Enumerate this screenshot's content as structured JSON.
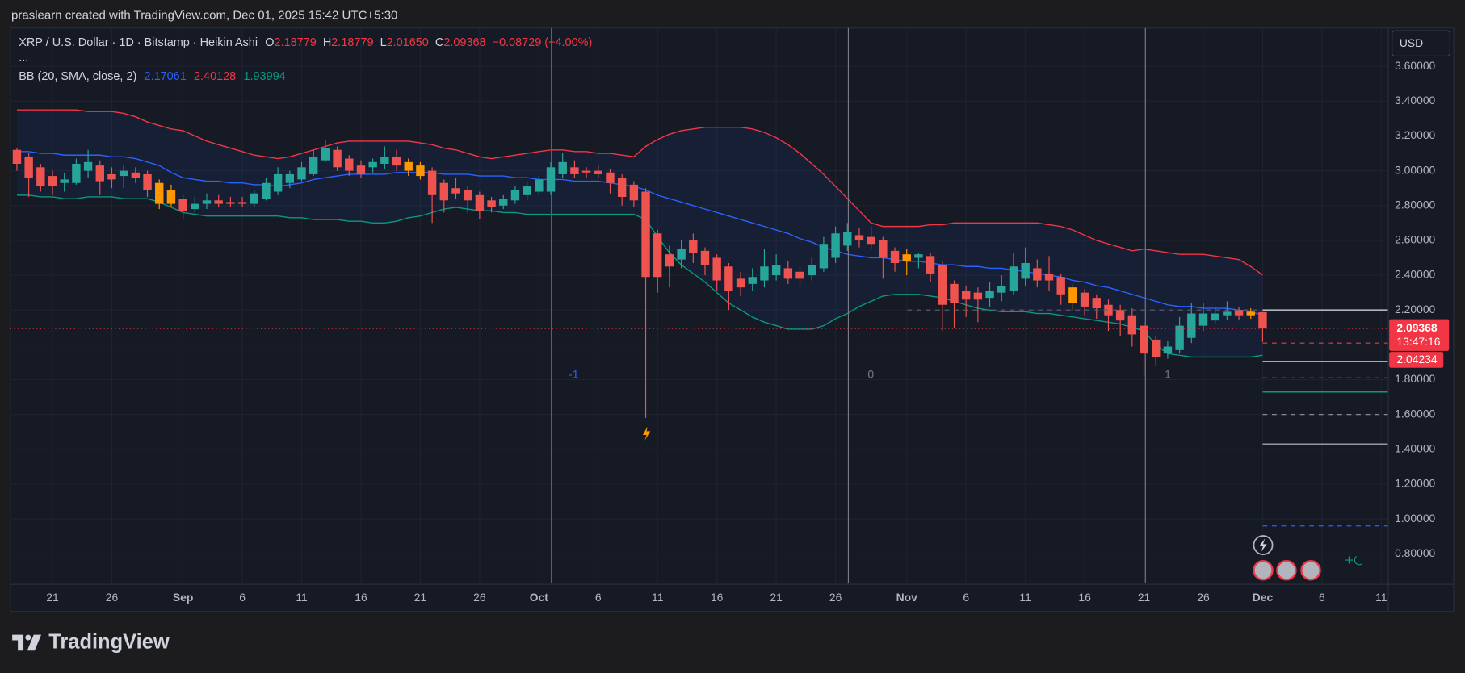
{
  "header": {
    "attribution": "praslearn created with TradingView.com, Dec 01, 2025 15:42 UTC+5:30"
  },
  "chart_data": {
    "type": "candlestick",
    "title": "XRP / U.S. Dollar · 1D · Bitstamp · Heikin Ashi",
    "ohlc_legend": [
      {
        "label": "O",
        "value": "2.18779"
      },
      {
        "label": "H",
        "value": "2.18779"
      },
      {
        "label": "L",
        "value": "2.01650"
      },
      {
        "label": "C",
        "value": "2.09368"
      }
    ],
    "change": "−0.08729 (−4.00%)",
    "more": "...",
    "currency": "USD",
    "categories": [
      null,
      null,
      null,
      "21",
      null,
      null,
      null,
      null,
      "26",
      null,
      null,
      null,
      null,
      null,
      "Sep",
      null,
      null,
      null,
      null,
      "6",
      null,
      null,
      null,
      null,
      "11",
      null,
      null,
      null,
      null,
      "16",
      null,
      null,
      null,
      null,
      "21",
      null,
      null,
      null,
      null,
      "26",
      null,
      null,
      null,
      null,
      "Oct",
      null,
      null,
      null,
      null,
      "6",
      null,
      null,
      null,
      null,
      "11",
      null,
      null,
      null,
      null,
      "16",
      null,
      null,
      null,
      null,
      "21",
      null,
      null,
      null,
      null,
      "26",
      null,
      null,
      null,
      null,
      null,
      "Nov",
      null,
      null,
      null,
      null,
      "6",
      null,
      null,
      null,
      null,
      "11",
      null,
      null,
      null,
      null,
      "16",
      null,
      null,
      null,
      null,
      "21",
      null,
      null,
      null,
      null,
      "26",
      null,
      null,
      null,
      null,
      "Dec",
      null,
      null,
      null,
      null,
      "6",
      null,
      null,
      null,
      null,
      "11"
    ],
    "open": [
      3.12,
      3.08,
      3.02,
      2.97,
      2.93,
      2.93,
      3.0,
      3.03,
      2.98,
      2.97,
      2.99,
      2.98,
      2.93,
      2.89,
      2.84,
      2.78,
      2.81,
      2.83,
      2.82,
      2.82,
      2.81,
      2.84,
      2.88,
      2.93,
      2.95,
      2.98,
      3.06,
      3.12,
      3.07,
      3.03,
      3.02,
      3.04,
      3.08,
      3.05,
      3.03,
      3.0,
      2.93,
      2.9,
      2.89,
      2.86,
      2.83,
      2.8,
      2.83,
      2.86,
      2.88,
      2.88,
      2.98,
      3.02,
      3.0,
      3.0,
      2.99,
      2.96,
      2.92,
      2.88,
      2.64,
      2.52,
      2.49,
      2.6,
      2.54,
      2.5,
      2.45,
      2.38,
      2.35,
      2.37,
      2.4,
      2.44,
      2.42,
      2.4,
      2.44,
      2.5,
      2.57,
      2.63,
      2.62,
      2.6,
      2.54,
      2.52,
      2.5,
      2.51,
      2.46,
      2.35,
      2.31,
      2.3,
      2.27,
      2.3,
      2.31,
      2.38,
      2.44,
      2.41,
      2.39,
      2.33,
      2.3,
      2.27,
      2.23,
      2.2,
      2.17,
      2.11,
      2.03,
      1.95,
      1.97,
      2.04,
      2.11,
      2.14,
      2.17,
      2.2,
      2.19,
      2.18779,
      null,
      null,
      null,
      null,
      null,
      null,
      null,
      null,
      null,
      null
    ],
    "high": [
      3.13,
      3.1,
      3.04,
      3.0,
      2.99,
      3.07,
      3.12,
      3.06,
      3.02,
      3.03,
      3.02,
      3.0,
      2.95,
      2.92,
      2.86,
      2.85,
      2.87,
      2.86,
      2.85,
      2.85,
      2.89,
      2.96,
      3.02,
      3.0,
      3.05,
      3.12,
      3.18,
      3.14,
      3.09,
      3.06,
      3.07,
      3.14,
      3.12,
      3.07,
      3.05,
      3.02,
      2.95,
      2.96,
      2.91,
      2.88,
      2.85,
      2.86,
      2.91,
      2.94,
      2.97,
      3.05,
      3.1,
      3.06,
      3.02,
      3.03,
      3.01,
      2.98,
      2.94,
      2.9,
      2.66,
      2.57,
      2.6,
      2.64,
      2.56,
      2.52,
      2.47,
      2.42,
      2.44,
      2.55,
      2.52,
      2.48,
      2.45,
      2.5,
      2.62,
      2.68,
      2.7,
      2.67,
      2.68,
      2.62,
      2.56,
      2.55,
      2.53,
      2.53,
      2.48,
      2.37,
      2.34,
      2.33,
      2.36,
      2.4,
      2.53,
      2.56,
      2.49,
      2.51,
      2.41,
      2.35,
      2.32,
      2.29,
      2.26,
      2.23,
      2.21,
      2.13,
      2.05,
      2.02,
      2.16,
      2.24,
      2.24,
      2.22,
      2.25,
      2.22,
      2.21,
      2.18779,
      null,
      null,
      null,
      null,
      null,
      null,
      null,
      null,
      null,
      null
    ],
    "low": [
      3.0,
      2.85,
      2.88,
      2.86,
      2.88,
      2.92,
      2.96,
      2.86,
      2.9,
      2.9,
      2.93,
      2.85,
      2.78,
      2.79,
      2.72,
      2.76,
      2.78,
      2.79,
      2.79,
      2.79,
      2.79,
      2.83,
      2.86,
      2.9,
      2.94,
      2.97,
      3.05,
      3.0,
      2.97,
      2.96,
      2.99,
      3.01,
      3.0,
      2.97,
      2.95,
      2.7,
      2.76,
      2.84,
      2.76,
      2.72,
      2.76,
      2.78,
      2.81,
      2.83,
      2.86,
      2.86,
      2.96,
      2.96,
      2.96,
      2.96,
      2.87,
      2.8,
      2.79,
      1.58,
      2.3,
      2.33,
      2.44,
      2.47,
      2.4,
      2.31,
      2.2,
      2.28,
      2.31,
      2.33,
      2.37,
      2.35,
      2.34,
      2.37,
      2.42,
      2.47,
      2.54,
      2.56,
      2.55,
      2.38,
      2.42,
      2.4,
      2.44,
      2.36,
      2.08,
      2.1,
      2.16,
      2.13,
      2.22,
      2.25,
      2.29,
      2.34,
      2.33,
      2.31,
      2.23,
      2.2,
      2.17,
      2.15,
      2.08,
      2.05,
      1.99,
      1.82,
      1.88,
      1.92,
      1.95,
      2.01,
      2.08,
      2.12,
      2.14,
      2.14,
      2.15,
      2.0165,
      null,
      null,
      null,
      null,
      null,
      null,
      null,
      null,
      null,
      null
    ],
    "close": [
      3.04,
      2.96,
      2.91,
      2.91,
      2.95,
      3.04,
      3.05,
      2.94,
      2.95,
      3.0,
      2.96,
      2.89,
      2.81,
      2.81,
      2.77,
      2.81,
      2.83,
      2.81,
      2.81,
      2.81,
      2.87,
      2.93,
      2.98,
      2.98,
      3.02,
      3.08,
      3.13,
      3.02,
      3.0,
      2.98,
      3.05,
      3.08,
      3.03,
      3.0,
      2.97,
      2.86,
      2.83,
      2.87,
      2.83,
      2.77,
      2.79,
      2.84,
      2.89,
      2.91,
      2.95,
      3.02,
      3.05,
      2.98,
      2.99,
      2.98,
      2.93,
      2.85,
      2.83,
      2.39,
      2.39,
      2.45,
      2.55,
      2.53,
      2.46,
      2.37,
      2.31,
      2.33,
      2.39,
      2.45,
      2.46,
      2.38,
      2.38,
      2.46,
      2.58,
      2.64,
      2.65,
      2.6,
      2.58,
      2.5,
      2.47,
      2.48,
      2.52,
      2.41,
      2.23,
      2.24,
      2.26,
      2.26,
      2.31,
      2.34,
      2.45,
      2.47,
      2.37,
      2.37,
      2.29,
      2.24,
      2.22,
      2.21,
      2.17,
      2.14,
      2.06,
      1.95,
      1.93,
      1.99,
      2.11,
      2.18,
      2.18,
      2.18,
      2.19,
      2.17,
      2.17,
      2.09368,
      null,
      null,
      null,
      null,
      null,
      null,
      null,
      null,
      null,
      null
    ],
    "candle_colors": [
      "#ef5350",
      "#ef5350",
      "#ef5350",
      "#ef5350",
      "#26a69a",
      "#26a69a",
      "#26a69a",
      "#ef5350",
      "#ef5350",
      "#26a69a",
      "#ef5350",
      "#ef5350",
      "#ff9800",
      "#ff9800",
      "#ef5350",
      "#26a69a",
      "#26a69a",
      "#ef5350",
      "#ef5350",
      "#ef5350",
      "#26a69a",
      "#26a69a",
      "#26a69a",
      "#26a69a",
      "#26a69a",
      "#26a69a",
      "#26a69a",
      "#ef5350",
      "#ef5350",
      "#ef5350",
      "#26a69a",
      "#26a69a",
      "#ef5350",
      "#ff9800",
      "#ff9800",
      "#ef5350",
      "#ef5350",
      "#ef5350",
      "#ef5350",
      "#ef5350",
      "#ef5350",
      "#26a69a",
      "#26a69a",
      "#26a69a",
      "#26a69a",
      "#26a69a",
      "#26a69a",
      "#ef5350",
      "#ef5350",
      "#ef5350",
      "#ef5350",
      "#ef5350",
      "#ef5350",
      "#ef5350",
      "#ef5350",
      "#ef5350",
      "#26a69a",
      "#ef5350",
      "#ef5350",
      "#ef5350",
      "#ef5350",
      "#ef5350",
      "#26a69a",
      "#26a69a",
      "#26a69a",
      "#ef5350",
      "#ef5350",
      "#26a69a",
      "#26a69a",
      "#26a69a",
      "#26a69a",
      "#ef5350",
      "#ef5350",
      "#ef5350",
      "#ef5350",
      "#ff9800",
      "#26a69a",
      "#ef5350",
      "#ef5350",
      "#ef5350",
      "#ef5350",
      "#ef5350",
      "#26a69a",
      "#26a69a",
      "#26a69a",
      "#26a69a",
      "#ef5350",
      "#ef5350",
      "#ef5350",
      "#ff9800",
      "#ef5350",
      "#ef5350",
      "#ef5350",
      "#ef5350",
      "#ef5350",
      "#ef5350",
      "#ef5350",
      "#26a69a",
      "#26a69a",
      "#26a69a",
      "#26a69a",
      "#26a69a",
      "#26a69a",
      "#ef5350",
      "#ff9800",
      "#ef5350",
      null,
      null,
      null,
      null,
      null,
      null,
      null,
      null,
      null,
      null
    ],
    "indicator": {
      "name": "BB (20, SMA, close, 2)",
      "fill": "rgba(41,98,255,0.07)",
      "series": [
        {
          "label": "2.17061",
          "color": "#2962ff",
          "values": [
            3.11,
            3.11,
            3.1,
            3.1,
            3.09,
            3.09,
            3.09,
            3.09,
            3.08,
            3.08,
            3.07,
            3.05,
            3.03,
            2.99,
            2.96,
            2.95,
            2.94,
            2.94,
            2.93,
            2.93,
            2.92,
            2.92,
            2.91,
            2.92,
            2.93,
            2.95,
            2.96,
            2.97,
            2.98,
            2.98,
            2.98,
            2.98,
            2.99,
            2.99,
            2.99,
            2.99,
            2.98,
            2.98,
            2.98,
            2.97,
            2.97,
            2.97,
            2.96,
            2.96,
            2.95,
            2.95,
            2.95,
            2.94,
            2.94,
            2.94,
            2.93,
            2.92,
            2.91,
            2.89,
            2.86,
            2.84,
            2.82,
            2.8,
            2.78,
            2.76,
            2.74,
            2.72,
            2.7,
            2.68,
            2.66,
            2.64,
            2.61,
            2.59,
            2.56,
            2.54,
            2.52,
            2.51,
            2.5,
            2.5,
            2.49,
            2.48,
            2.48,
            2.47,
            2.46,
            2.46,
            2.45,
            2.45,
            2.44,
            2.44,
            2.43,
            2.42,
            2.41,
            2.4,
            2.39,
            2.37,
            2.36,
            2.34,
            2.33,
            2.31,
            2.29,
            2.27,
            2.25,
            2.23,
            2.22,
            2.22,
            2.21,
            2.21,
            2.21,
            2.2,
            2.19,
            2.17061,
            null,
            null,
            null,
            null,
            null,
            null,
            null,
            null,
            null,
            null
          ]
        },
        {
          "label": "2.40128",
          "color": "#f23645",
          "values": [
            3.35,
            3.35,
            3.35,
            3.35,
            3.35,
            3.35,
            3.34,
            3.34,
            3.34,
            3.33,
            3.31,
            3.28,
            3.26,
            3.24,
            3.23,
            3.2,
            3.17,
            3.15,
            3.13,
            3.11,
            3.09,
            3.08,
            3.07,
            3.08,
            3.1,
            3.12,
            3.14,
            3.16,
            3.17,
            3.17,
            3.17,
            3.17,
            3.17,
            3.17,
            3.16,
            3.15,
            3.13,
            3.12,
            3.1,
            3.08,
            3.07,
            3.08,
            3.09,
            3.1,
            3.11,
            3.12,
            3.12,
            3.11,
            3.11,
            3.1,
            3.1,
            3.09,
            3.08,
            3.14,
            3.18,
            3.21,
            3.23,
            3.24,
            3.25,
            3.25,
            3.25,
            3.25,
            3.24,
            3.22,
            3.19,
            3.15,
            3.1,
            3.04,
            2.98,
            2.91,
            2.84,
            2.77,
            2.7,
            2.68,
            2.68,
            2.68,
            2.68,
            2.69,
            2.69,
            2.7,
            2.7,
            2.7,
            2.7,
            2.7,
            2.7,
            2.7,
            2.7,
            2.69,
            2.68,
            2.66,
            2.63,
            2.6,
            2.58,
            2.56,
            2.54,
            2.55,
            2.54,
            2.53,
            2.52,
            2.52,
            2.52,
            2.51,
            2.5,
            2.49,
            2.45,
            2.40128,
            null,
            null,
            null,
            null,
            null,
            null,
            null,
            null,
            null,
            null
          ]
        },
        {
          "label": "1.93994",
          "color": "#089981",
          "values": [
            2.86,
            2.86,
            2.85,
            2.85,
            2.84,
            2.84,
            2.85,
            2.85,
            2.85,
            2.84,
            2.84,
            2.84,
            2.82,
            2.79,
            2.76,
            2.75,
            2.74,
            2.74,
            2.74,
            2.74,
            2.74,
            2.74,
            2.74,
            2.73,
            2.73,
            2.72,
            2.72,
            2.72,
            2.71,
            2.71,
            2.7,
            2.7,
            2.71,
            2.73,
            2.74,
            2.76,
            2.78,
            2.79,
            2.78,
            2.77,
            2.77,
            2.76,
            2.76,
            2.75,
            2.75,
            2.75,
            2.75,
            2.75,
            2.75,
            2.75,
            2.75,
            2.75,
            2.75,
            2.72,
            2.62,
            2.53,
            2.46,
            2.41,
            2.36,
            2.3,
            2.24,
            2.2,
            2.16,
            2.13,
            2.11,
            2.09,
            2.09,
            2.09,
            2.11,
            2.15,
            2.18,
            2.22,
            2.25,
            2.28,
            2.29,
            2.29,
            2.29,
            2.28,
            2.27,
            2.25,
            2.23,
            2.21,
            2.2,
            2.19,
            2.19,
            2.19,
            2.18,
            2.18,
            2.17,
            2.16,
            2.15,
            2.14,
            2.13,
            2.12,
            2.1,
            2.08,
            2.0,
            1.95,
            1.94,
            1.93,
            1.93,
            1.93,
            1.93,
            1.93,
            1.93,
            1.93994,
            null,
            null,
            null,
            null,
            null,
            null,
            null,
            null,
            null,
            null
          ]
        }
      ]
    },
    "ylim": [
      0.63,
      3.82
    ],
    "yticks": [
      {
        "value": 0.8,
        "label": "0.80000"
      },
      {
        "value": 1.0,
        "label": "1.00000"
      },
      {
        "value": 1.2,
        "label": "1.20000"
      },
      {
        "value": 1.4,
        "label": "1.40000"
      },
      {
        "value": 1.6,
        "label": "1.60000"
      },
      {
        "value": 1.8,
        "label": "1.80000"
      },
      {
        "value": 2.0,
        "label": "2.00000"
      },
      {
        "value": 2.2,
        "label": "2.20000"
      },
      {
        "value": 2.4,
        "label": "2.40000"
      },
      {
        "value": 2.6,
        "label": "2.60000"
      },
      {
        "value": 2.8,
        "label": "2.80000"
      },
      {
        "value": 3.0,
        "label": "3.00000"
      },
      {
        "value": 3.2,
        "label": "3.20000"
      },
      {
        "value": 3.4,
        "label": "3.40000"
      },
      {
        "value": 3.6,
        "label": "3.60000"
      }
    ],
    "grid": true,
    "time_zones": [
      {
        "label": "-1",
        "color": "#2962ff"
      },
      {
        "label": "0",
        "color": "#787b86"
      },
      {
        "label": "1",
        "color": "#787b86"
      }
    ],
    "levels": [
      {
        "value": 2.2,
        "color": "#b2b5be",
        "style": "solid"
      },
      {
        "value": 2.01,
        "color": "#f23645",
        "style": "dashed"
      },
      {
        "value": 1.905,
        "color": "#81c784",
        "style": "solid"
      },
      {
        "value": 1.81,
        "color": "#6a8a7a",
        "style": "dashed"
      },
      {
        "value": 1.73,
        "color": "#089981",
        "style": "solid"
      },
      {
        "value": 1.6,
        "color": "#9598a1",
        "style": "dashed"
      },
      {
        "value": 1.43,
        "color": "#9598a1",
        "style": "solid"
      },
      {
        "value": 0.96,
        "color": "#2962ff",
        "style": "dashed"
      }
    ],
    "last_price": {
      "value": 2.09368,
      "label": "2.09368",
      "countdown": "13:47:16",
      "color": "#f23645"
    },
    "second_price_label": "2.04234"
  },
  "footer": {
    "brand": "TradingView"
  }
}
